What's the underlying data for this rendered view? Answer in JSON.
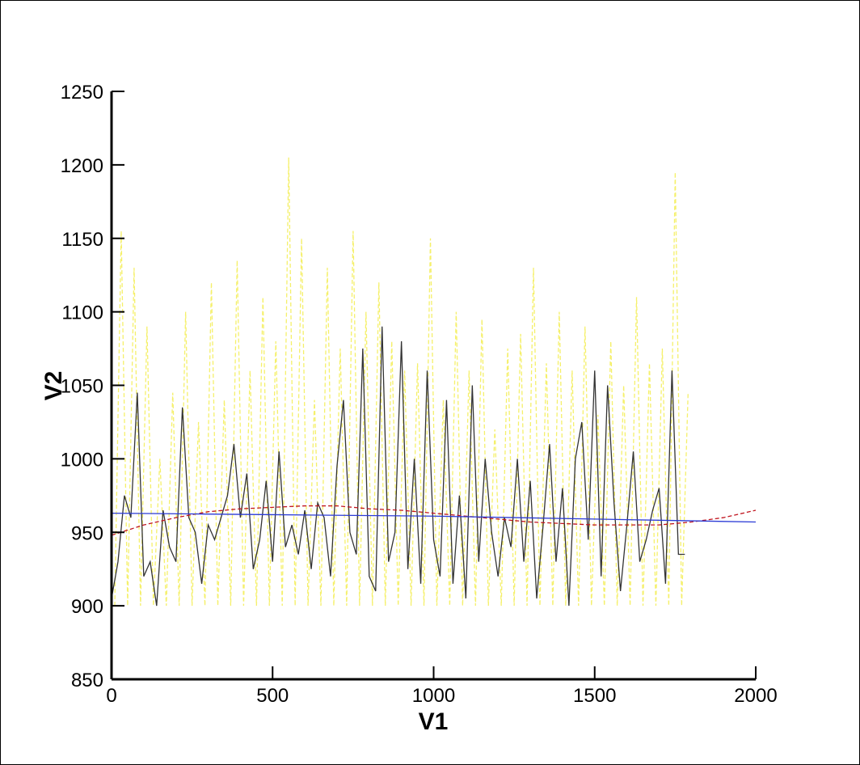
{
  "chart_data": {
    "type": "line",
    "xlabel": "V1",
    "ylabel": "V2",
    "xlim": [
      0,
      2000
    ],
    "ylim": [
      850,
      1250
    ],
    "xticks": [
      0,
      500,
      1000,
      1500,
      2000
    ],
    "yticks": [
      850,
      900,
      950,
      1000,
      1050,
      1100,
      1150,
      1200,
      1250
    ],
    "series": [
      {
        "color": "#f5f06a",
        "linestyle": "dashed",
        "x": [
          10,
          30,
          50,
          70,
          90,
          110,
          130,
          150,
          170,
          190,
          210,
          230,
          250,
          270,
          290,
          310,
          330,
          350,
          370,
          390,
          410,
          430,
          450,
          470,
          490,
          510,
          530,
          550,
          570,
          590,
          610,
          630,
          650,
          670,
          690,
          710,
          730,
          750,
          770,
          790,
          810,
          830,
          850,
          870,
          890,
          910,
          930,
          950,
          970,
          990,
          1010,
          1030,
          1050,
          1070,
          1090,
          1110,
          1130,
          1150,
          1170,
          1190,
          1210,
          1230,
          1250,
          1270,
          1290,
          1310,
          1330,
          1350,
          1370,
          1390,
          1410,
          1430,
          1450,
          1470,
          1490,
          1510,
          1530,
          1550,
          1570,
          1590,
          1610,
          1630,
          1650,
          1670,
          1690,
          1710,
          1730,
          1750,
          1770,
          1790
        ],
        "values": [
          900,
          1155,
          900,
          1130,
          900,
          1090,
          900,
          1000,
          900,
          1045,
          900,
          1100,
          900,
          1025,
          900,
          1120,
          900,
          1040,
          900,
          1135,
          900,
          1060,
          900,
          1110,
          900,
          1080,
          900,
          1205,
          900,
          1150,
          900,
          1040,
          900,
          1130,
          900,
          1075,
          900,
          1155,
          900,
          1100,
          900,
          1120,
          900,
          1080,
          900,
          1060,
          900,
          1065,
          900,
          1150,
          900,
          1040,
          900,
          1100,
          900,
          1060,
          900,
          1095,
          900,
          1020,
          900,
          1075,
          900,
          1085,
          900,
          1130,
          900,
          1065,
          900,
          1100,
          900,
          1060,
          900,
          1090,
          900,
          1030,
          900,
          1080,
          900,
          1050,
          900,
          1110,
          900,
          1065,
          900,
          1075,
          900,
          1195,
          900,
          1045
        ]
      },
      {
        "color": "#333333",
        "linestyle": "solid",
        "x": [
          0,
          20,
          40,
          60,
          80,
          100,
          120,
          140,
          160,
          180,
          200,
          220,
          240,
          260,
          280,
          300,
          320,
          340,
          360,
          380,
          400,
          420,
          440,
          460,
          480,
          500,
          520,
          540,
          560,
          580,
          600,
          620,
          640,
          660,
          680,
          700,
          720,
          740,
          760,
          780,
          800,
          820,
          840,
          860,
          880,
          900,
          920,
          940,
          960,
          980,
          1000,
          1020,
          1040,
          1060,
          1080,
          1100,
          1120,
          1140,
          1160,
          1180,
          1200,
          1220,
          1240,
          1260,
          1280,
          1300,
          1320,
          1340,
          1360,
          1380,
          1400,
          1420,
          1440,
          1460,
          1480,
          1500,
          1520,
          1540,
          1560,
          1580,
          1600,
          1620,
          1640,
          1660,
          1680,
          1700,
          1720,
          1740,
          1760,
          1780
        ],
        "values": [
          905,
          930,
          975,
          960,
          1045,
          920,
          930,
          900,
          965,
          940,
          930,
          1035,
          960,
          950,
          915,
          955,
          945,
          960,
          975,
          1010,
          960,
          990,
          925,
          945,
          985,
          930,
          1005,
          940,
          955,
          935,
          965,
          925,
          970,
          960,
          920,
          995,
          1040,
          950,
          935,
          1075,
          920,
          910,
          1090,
          930,
          950,
          1080,
          925,
          1000,
          915,
          1060,
          945,
          920,
          1040,
          915,
          975,
          905,
          1050,
          930,
          1000,
          950,
          920,
          960,
          940,
          1000,
          930,
          985,
          905,
          955,
          1010,
          930,
          980,
          900,
          1000,
          1025,
          945,
          1060,
          920,
          1050,
          970,
          910,
          955,
          1005,
          930,
          945,
          965,
          980,
          915,
          1060,
          935,
          935
        ]
      },
      {
        "color": "#c0141e",
        "linestyle": "dashed",
        "x": [
          0,
          100,
          200,
          300,
          400,
          500,
          600,
          700,
          800,
          900,
          1000,
          1100,
          1200,
          1300,
          1400,
          1500,
          1600,
          1700,
          1800,
          1900,
          2000
        ],
        "values": [
          948,
          955,
          960,
          964,
          966,
          967,
          968,
          968,
          966,
          965,
          963,
          961,
          959,
          957,
          956,
          955,
          955,
          955,
          957,
          960,
          965
        ]
      },
      {
        "color": "#2b3bd6",
        "linestyle": "solid",
        "x": [
          0,
          250,
          500,
          750,
          1000,
          1250,
          1500,
          1750,
          2000
        ],
        "values": [
          963,
          962.5,
          962,
          961.5,
          961,
          960,
          959,
          958,
          957
        ]
      }
    ]
  }
}
